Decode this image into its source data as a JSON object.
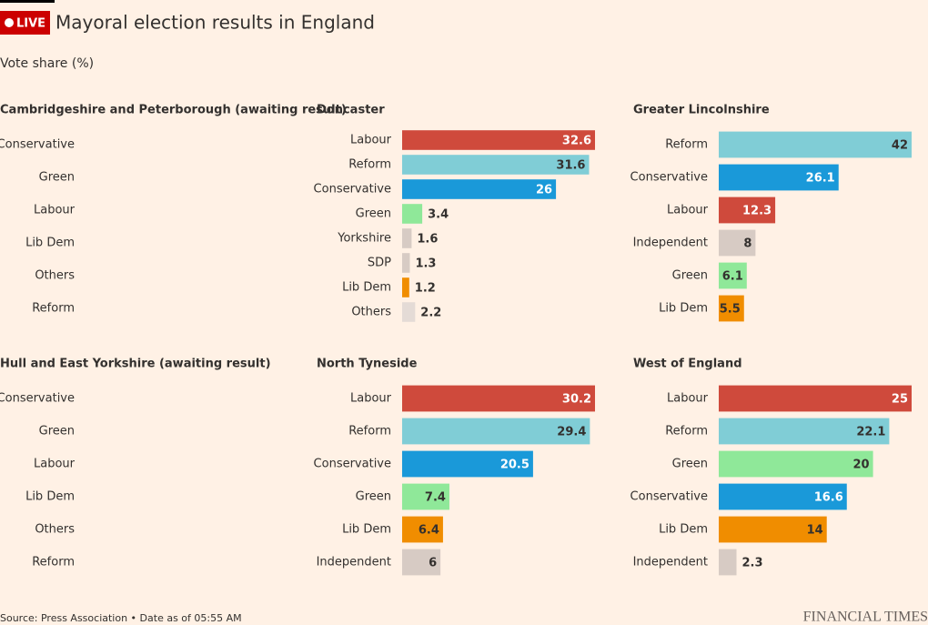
{
  "header": {
    "live": "LIVE",
    "title": "Mayoral election results in England",
    "subtitle": "Vote share (%)"
  },
  "chart_data": [
    {
      "type": "bar",
      "title": "Cambridgeshire and Peterborough (awaiting result)",
      "categories": [
        "Conservative",
        "Green",
        "Labour",
        "Lib Dem",
        "Others",
        "Reform"
      ],
      "values": [
        null,
        null,
        null,
        null,
        null,
        null
      ]
    },
    {
      "type": "bar",
      "title": "Doncaster",
      "categories": [
        "Labour",
        "Reform",
        "Conservative",
        "Green",
        "Yorkshire",
        "SDP",
        "Lib Dem",
        "Others"
      ],
      "values": [
        32.6,
        31.6,
        26,
        3.4,
        1.6,
        1.3,
        1.2,
        2.2
      ],
      "colors": [
        "#cf4a3c",
        "#80cdd6",
        "#1a99d9",
        "#8fe899",
        "#d7cbc4",
        "#d7cbc4",
        "#f08d00",
        "#e4dbd6"
      ]
    },
    {
      "type": "bar",
      "title": "Greater Lincolnshire",
      "categories": [
        "Reform",
        "Conservative",
        "Labour",
        "Independent",
        "Green",
        "Lib Dem"
      ],
      "values": [
        42,
        26.1,
        12.3,
        8,
        6.1,
        5.5
      ],
      "colors": [
        "#80cdd6",
        "#1a99d9",
        "#cf4a3c",
        "#d7cbc4",
        "#8fe899",
        "#f08d00"
      ]
    },
    {
      "type": "bar",
      "title": "Hull and East Yorkshire (awaiting result)",
      "categories": [
        "Conservative",
        "Green",
        "Labour",
        "Lib Dem",
        "Others",
        "Reform"
      ],
      "values": [
        null,
        null,
        null,
        null,
        null,
        null
      ]
    },
    {
      "type": "bar",
      "title": "North Tyneside",
      "categories": [
        "Labour",
        "Reform",
        "Conservative",
        "Green",
        "Lib Dem",
        "Independent"
      ],
      "values": [
        30.2,
        29.4,
        20.5,
        7.4,
        6.4,
        6
      ],
      "colors": [
        "#cf4a3c",
        "#80cdd6",
        "#1a99d9",
        "#8fe899",
        "#f08d00",
        "#d7cbc4"
      ]
    },
    {
      "type": "bar",
      "title": "West of England",
      "categories": [
        "Labour",
        "Reform",
        "Green",
        "Conservative",
        "Lib Dem",
        "Independent"
      ],
      "values": [
        25,
        22.1,
        20,
        16.6,
        14,
        2.3
      ],
      "colors": [
        "#cf4a3c",
        "#80cdd6",
        "#8fe899",
        "#1a99d9",
        "#f08d00",
        "#d7cbc4"
      ]
    }
  ],
  "footer": {
    "source": "Source: Press Association • Date as of 05:55 AM",
    "brand": "FINANCIAL TIMES"
  }
}
